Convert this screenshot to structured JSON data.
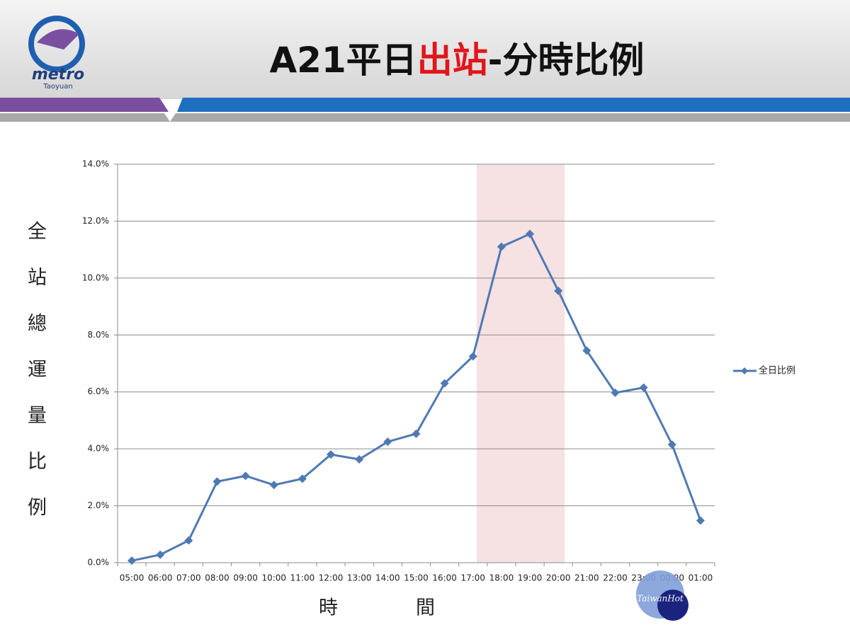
{
  "slide": {
    "logo": "metro",
    "logo_sub": "Taoyuan",
    "title_parts": [
      "A21平日",
      "出站",
      "-分時比例"
    ],
    "watermark": "TaiwanHot"
  },
  "chart_data": {
    "type": "line",
    "y_label": "全站總運量比例",
    "x_label": "時間",
    "categories": [
      "05:00",
      "06:00",
      "07:00",
      "08:00",
      "09:00",
      "10:00",
      "11:00",
      "12:00",
      "13:00",
      "14:00",
      "15:00",
      "16:00",
      "17:00",
      "18:00",
      "19:00",
      "20:00",
      "21:00",
      "22:00",
      "23:00",
      "00:00",
      "01:00"
    ],
    "series": [
      {
        "name": "全日比例",
        "color": "#4f79b3",
        "values": [
          0.07,
          0.28,
          0.78,
          2.85,
          3.05,
          2.73,
          2.95,
          3.8,
          3.63,
          4.25,
          4.53,
          6.3,
          7.25,
          11.1,
          11.55,
          9.55,
          7.45,
          5.97,
          6.15,
          4.15,
          1.48
        ]
      }
    ],
    "ylim": [
      0,
      14
    ],
    "yticks": [
      {
        "value": 0,
        "label": "0.0%"
      },
      {
        "value": 2,
        "label": "2.0%"
      },
      {
        "value": 4,
        "label": "4.0%"
      },
      {
        "value": 6,
        "label": "6.0%"
      },
      {
        "value": 8,
        "label": "8.0%"
      },
      {
        "value": 10,
        "label": "10.0%"
      },
      {
        "value": 12,
        "label": "12.0%"
      },
      {
        "value": 14,
        "label": "14.0%"
      }
    ],
    "grid": true,
    "legend": "right"
  }
}
